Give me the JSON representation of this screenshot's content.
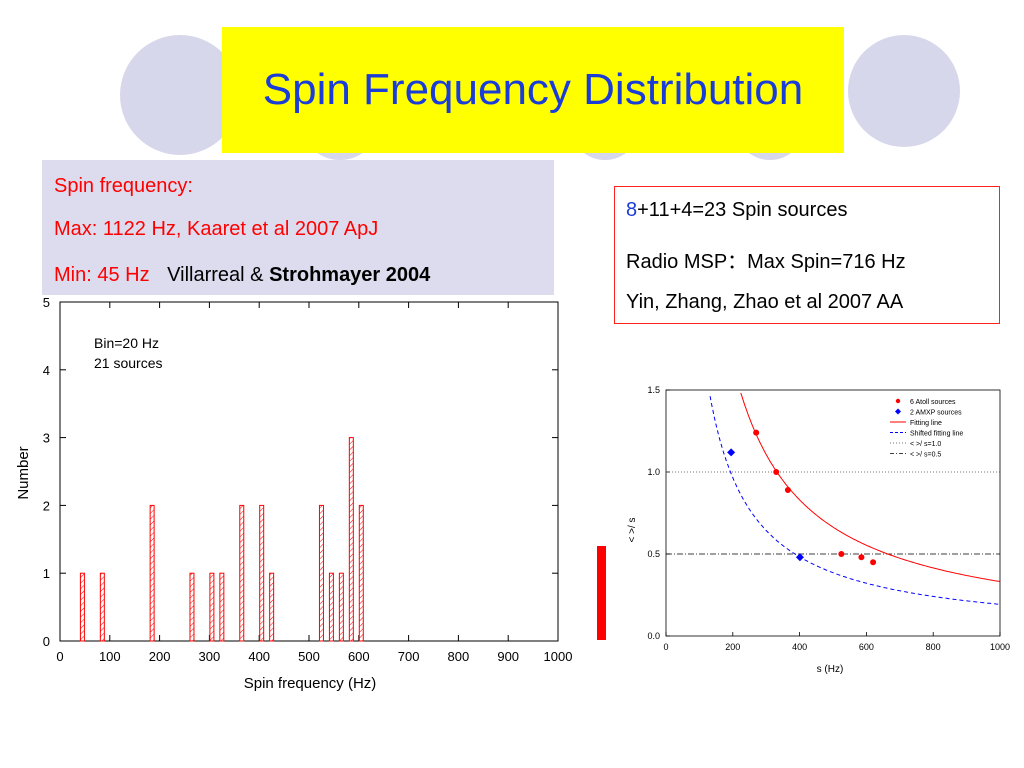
{
  "slide": {
    "title": "Spin Frequency Distribution",
    "left_box": {
      "line1": "Spin  frequency:",
      "line2": "Max: 1122 Hz, Kaaret  et al 2007 ApJ",
      "line3_red": "Min:  45 Hz",
      "line3_black": "Villarreal & ",
      "line3_bold": "Strohmayer 2004"
    },
    "right_box": {
      "line1_blue": "8",
      "line1_rest": "+11+4=23 Spin sources",
      "line2": "Radio MSP：Max Spin=716 Hz",
      "line3": "Yin, Zhang, Zhao et al 2007 AA"
    }
  },
  "colors": {
    "title_bg": "#ffff00",
    "title_text": "#1a3cd8",
    "left_box_bg": "#dcdcee",
    "accent_red": "#ff0000",
    "accent_blue": "#1a3cd8",
    "hist_bar": "#ff0000",
    "fit_line": "#ff0000",
    "shifted_line": "#0000ff"
  },
  "chart_data": [
    {
      "type": "bar",
      "xlabel": "Spin frequency (Hz)",
      "ylabel": "Number",
      "xlim": [
        0,
        1000
      ],
      "ylim": [
        0,
        5
      ],
      "xticks": [
        0,
        100,
        200,
        300,
        400,
        500,
        600,
        700,
        800,
        900,
        1000
      ],
      "yticks": [
        0,
        1,
        2,
        3,
        4,
        5
      ],
      "annotation_line1": "Bin=20 Hz",
      "annotation_line2": "21 sources",
      "bins": [
        {
          "x": 45,
          "value": 1
        },
        {
          "x": 85,
          "value": 1
        },
        {
          "x": 185,
          "value": 2
        },
        {
          "x": 265,
          "value": 1
        },
        {
          "x": 305,
          "value": 1
        },
        {
          "x": 325,
          "value": 1
        },
        {
          "x": 365,
          "value": 2
        },
        {
          "x": 405,
          "value": 2
        },
        {
          "x": 425,
          "value": 1
        },
        {
          "x": 525,
          "value": 2
        },
        {
          "x": 545,
          "value": 1
        },
        {
          "x": 565,
          "value": 1
        },
        {
          "x": 585,
          "value": 3
        },
        {
          "x": 605,
          "value": 2
        }
      ]
    },
    {
      "type": "scatter",
      "xlabel": "s (Hz)",
      "ylabel": "<  >/  s",
      "xlim": [
        0,
        1000
      ],
      "ylim": [
        0,
        1.5
      ],
      "xticks": [
        0,
        200,
        400,
        600,
        800,
        1000
      ],
      "yticks": [
        "0.0",
        "0.5",
        "1.0",
        "1.5"
      ],
      "reference_lines": [
        1.0,
        0.5
      ],
      "legend": {
        "placement": "top-right",
        "entries": [
          "6 Atoll sources",
          "2 AMXP sources",
          "Fitting line",
          "Shifted fitting line",
          "<   >/  s=1.0",
          "<   >/  s=0.5"
        ]
      },
      "series": [
        {
          "name": "6 Atoll sources",
          "x": [
            270,
            330,
            365,
            525,
            585,
            620
          ],
          "y": [
            1.24,
            1.0,
            0.89,
            0.5,
            0.48,
            0.45
          ]
        },
        {
          "name": "2 AMXP sources",
          "x": [
            195,
            401
          ],
          "y": [
            1.12,
            0.48
          ]
        }
      ],
      "curves": [
        {
          "name": "Fitting line",
          "k": 332,
          "style": "solid"
        },
        {
          "name": "Shifted fitting line",
          "k": 193,
          "style": "dashed"
        }
      ]
    }
  ]
}
